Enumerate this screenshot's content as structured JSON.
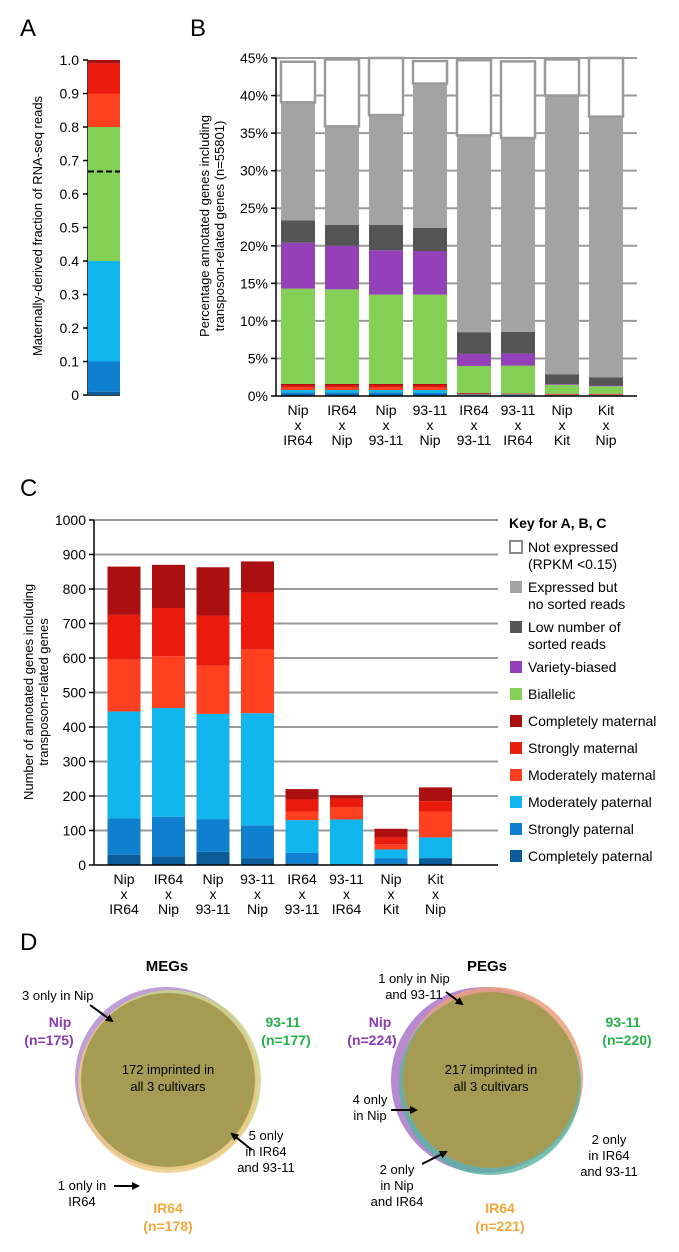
{
  "panels": {
    "A": {
      "letter": "A",
      "ylabel": "Maternally-derived fraction of RNA-seq reads",
      "ticks": [
        "0",
        "0.1",
        "0.2",
        "0.3",
        "0.4",
        "0.5",
        "0.6",
        "0.7",
        "0.8",
        "0.9",
        "1.0"
      ],
      "dashed_line_value": 0.667
    },
    "B": {
      "letter": "B",
      "ylabel_line1": "Percentage annotated genes including",
      "ylabel_line2": "transposon-related genes (n=55801)"
    },
    "C": {
      "letter": "C",
      "ylabel_line1": "Number of annotated genes including",
      "ylabel_line2": "transposon-related genes"
    },
    "D": {
      "letter": "D",
      "megs": {
        "title": "MEGs",
        "nip_name": "Nip",
        "nip_n": "(n=175)",
        "s9311_name": "93-11",
        "s9311_n": "(n=177)",
        "ir64_name": "IR64",
        "ir64_n": "(n=178)",
        "center_line1": "172 imprinted in",
        "center_line2": "all 3 cultivars",
        "notes": [
          {
            "lines": [
              "3 only in Nip"
            ]
          },
          {
            "lines": [
              "5 only",
              "in IR64",
              "and 93-11"
            ]
          },
          {
            "lines": [
              "1 only in",
              "IR64"
            ]
          }
        ]
      },
      "pegs": {
        "title": "PEGs",
        "nip_name": "Nip",
        "nip_n": "(n=224)",
        "s9311_name": "93-11",
        "s9311_n": "(n=220)",
        "ir64_name": "IR64",
        "ir64_n": "(n=221)",
        "center_line1": "217 imprinted in",
        "center_line2": "all 3 cultivars",
        "notes": [
          {
            "lines": [
              "1 only in Nip",
              "and 93-11"
            ]
          },
          {
            "lines": [
              "4 only",
              "in Nip"
            ]
          },
          {
            "lines": [
              "2 only",
              "in IR64",
              "and 93-11"
            ]
          },
          {
            "lines": [
              "2 only",
              "in Nip",
              "and IR64"
            ]
          }
        ]
      }
    }
  },
  "legend": {
    "title": "Key for A, B, C",
    "items": [
      {
        "label_lines": [
          "Not expressed",
          "(RPKM <0.15)"
        ],
        "color": "#ffffff",
        "outline": true
      },
      {
        "label_lines": [
          "Expressed but",
          "no sorted reads"
        ],
        "color": "#a3a3a3"
      },
      {
        "label_lines": [
          "Low number of",
          "sorted reads"
        ],
        "color": "#555555"
      },
      {
        "label_lines": [
          "Variety-biased"
        ],
        "color": "#9440b8"
      },
      {
        "label_lines": [
          "Biallelic"
        ],
        "color": "#84cf55"
      },
      {
        "label_lines": [
          "Completely maternal"
        ],
        "color": "#ab0f0f"
      },
      {
        "label_lines": [
          "Strongly maternal"
        ],
        "color": "#ea1a0c"
      },
      {
        "label_lines": [
          "Moderately maternal"
        ],
        "color": "#ff4020"
      },
      {
        "label_lines": [
          "Moderately paternal"
        ],
        "color": "#12b6ee"
      },
      {
        "label_lines": [
          "Strongly paternal"
        ],
        "color": "#0f7fd0"
      },
      {
        "label_lines": [
          "Completely paternal"
        ],
        "color": "#0c5c9a"
      }
    ]
  },
  "chart_data": [
    {
      "type": "bar",
      "panel": "A",
      "ylabel": "Maternally-derived fraction of RNA-seq reads",
      "ylim": [
        0,
        1.0
      ],
      "segments": [
        {
          "class": "Completely paternal",
          "from": 0,
          "to": 0.01
        },
        {
          "class": "Strongly paternal",
          "from": 0.01,
          "to": 0.1
        },
        {
          "class": "Moderately paternal",
          "from": 0.1,
          "to": 0.4
        },
        {
          "class": "Biallelic",
          "from": 0.4,
          "to": 0.8
        },
        {
          "class": "Moderately maternal",
          "from": 0.8,
          "to": 0.9
        },
        {
          "class": "Strongly maternal",
          "from": 0.9,
          "to": 0.99
        },
        {
          "class": "Completely maternal",
          "from": 0.99,
          "to": 1.0
        }
      ]
    },
    {
      "type": "bar",
      "panel": "B",
      "stacked": true,
      "ylabel": "Percentage annotated genes including transposon-related genes (n=55801)",
      "ylim": [
        0,
        45
      ],
      "yticks": [
        "0%",
        "5%",
        "10%",
        "15%",
        "20%",
        "25%",
        "30%",
        "35%",
        "40%",
        "45%"
      ],
      "grid": true,
      "categories": [
        [
          "Nip",
          "x",
          "IR64"
        ],
        [
          "IR64",
          "x",
          "Nip"
        ],
        [
          "Nip",
          "x",
          "93-11"
        ],
        [
          "93-11",
          "x",
          "Nip"
        ],
        [
          "IR64",
          "x",
          "93-11"
        ],
        [
          "93-11",
          "x",
          "IR64"
        ],
        [
          "Nip",
          "x",
          "Kit"
        ],
        [
          "Kit",
          "x",
          "Nip"
        ]
      ],
      "series": [
        {
          "name": "Completely paternal",
          "values": [
            0.2,
            0.2,
            0.2,
            0.2,
            0.05,
            0.05,
            0.05,
            0.05
          ]
        },
        {
          "name": "Strongly paternal",
          "values": [
            0.3,
            0.3,
            0.3,
            0.2,
            0.05,
            0.05,
            0.05,
            0.05
          ]
        },
        {
          "name": "Moderately paternal",
          "values": [
            0.3,
            0.3,
            0.3,
            0.4,
            0.1,
            0.1,
            0.05,
            0.05
          ]
        },
        {
          "name": "Moderately maternal",
          "values": [
            0.3,
            0.3,
            0.3,
            0.3,
            0.05,
            0.05,
            0.05,
            0.05
          ]
        },
        {
          "name": "Strongly maternal",
          "values": [
            0.3,
            0.3,
            0.3,
            0.3,
            0.05,
            0.05,
            0.05,
            0.05
          ]
        },
        {
          "name": "Completely maternal",
          "values": [
            0.2,
            0.2,
            0.2,
            0.2,
            0.1,
            0.05,
            0.05,
            0.05
          ]
        },
        {
          "name": "Biallelic",
          "values": [
            12.7,
            12.6,
            11.9,
            11.9,
            3.6,
            3.7,
            1.2,
            1.0
          ]
        },
        {
          "name": "Variety-biased",
          "values": [
            6.1,
            5.8,
            5.9,
            5.8,
            1.6,
            1.6,
            0.1,
            0.1
          ]
        },
        {
          "name": "Low number of sorted reads",
          "values": [
            3.0,
            2.8,
            3.4,
            3.1,
            2.9,
            2.9,
            1.3,
            1.1
          ]
        },
        {
          "name": "Expressed but no sorted reads",
          "values": [
            15.7,
            13.1,
            14.6,
            19.2,
            26.2,
            25.8,
            37.1,
            34.7
          ]
        },
        {
          "name": "Not expressed (RPKM <0.15)",
          "values": [
            5.4,
            8.9,
            7.6,
            3.0,
            10.0,
            10.2,
            4.8,
            7.8
          ]
        }
      ]
    },
    {
      "type": "bar",
      "panel": "C",
      "stacked": true,
      "ylabel": "Number of annotated genes including transposon-related genes",
      "ylim": [
        0,
        1000
      ],
      "yticks": [
        "0",
        "100",
        "200",
        "300",
        "400",
        "500",
        "600",
        "700",
        "800",
        "900",
        "1000"
      ],
      "grid": true,
      "categories": [
        [
          "Nip",
          "x",
          "IR64"
        ],
        [
          "IR64",
          "x",
          "Nip"
        ],
        [
          "Nip",
          "x",
          "93-11"
        ],
        [
          "93-11",
          "x",
          "Nip"
        ],
        [
          "IR64",
          "x",
          "93-11"
        ],
        [
          "93-11",
          "x",
          "IR64"
        ],
        [
          "Nip",
          "x",
          "Kit"
        ],
        [
          "Kit",
          "x",
          "Nip"
        ]
      ],
      "series": [
        {
          "name": "Completely paternal",
          "values": [
            30,
            25,
            38,
            20,
            5,
            2,
            5,
            20
          ]
        },
        {
          "name": "Strongly paternal",
          "values": [
            105,
            115,
            95,
            95,
            30,
            0,
            15,
            0
          ]
        },
        {
          "name": "Moderately paternal",
          "values": [
            310,
            315,
            305,
            325,
            95,
            130,
            25,
            60
          ]
        },
        {
          "name": "Moderately maternal",
          "values": [
            150,
            150,
            140,
            185,
            25,
            35,
            15,
            75
          ]
        },
        {
          "name": "Strongly maternal",
          "values": [
            130,
            140,
            145,
            165,
            35,
            25,
            20,
            30
          ]
        },
        {
          "name": "Completely maternal",
          "values": [
            140,
            125,
            140,
            90,
            30,
            10,
            25,
            40
          ]
        }
      ]
    }
  ]
}
